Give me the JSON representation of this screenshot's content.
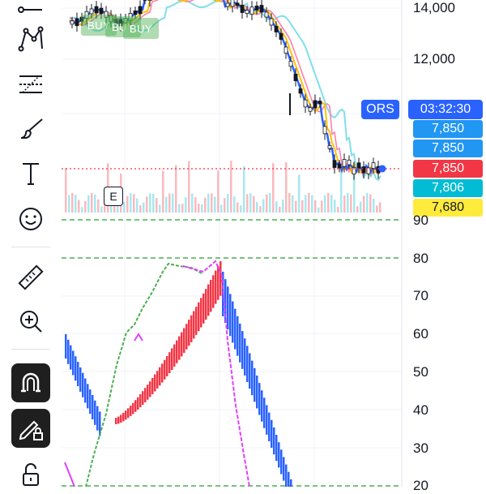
{
  "toolbar": {
    "tools": [
      {
        "name": "trend-line-icon"
      },
      {
        "name": "pattern-icon"
      },
      {
        "name": "fib-retracement-icon"
      },
      {
        "name": "brush-icon"
      },
      {
        "name": "text-icon"
      },
      {
        "name": "emoji-icon"
      },
      {
        "name": "ruler-icon"
      },
      {
        "name": "zoom-in-icon"
      },
      {
        "name": "magnet-icon"
      },
      {
        "name": "lock-drawing-icon"
      },
      {
        "name": "unlock-icon"
      }
    ]
  },
  "price_axis": {
    "labels": [
      "14,000",
      "12,000"
    ]
  },
  "indicator_axis": {
    "labels": [
      "90",
      "80",
      "70",
      "60",
      "50",
      "40",
      "30",
      "20"
    ]
  },
  "tags": {
    "symbol": "ORS",
    "countdown": "03:32:30",
    "prices": [
      {
        "value": "7,850",
        "color": "#2196f3"
      },
      {
        "value": "7,850",
        "color": "#2196f3"
      },
      {
        "value": "7,850",
        "color": "#f23645"
      },
      {
        "value": "7,806",
        "color": "#00bcd4"
      },
      {
        "value": "7,680",
        "color": "#ffeb3b"
      }
    ]
  },
  "markers": {
    "buy": [
      "BUY",
      "BUY",
      "BUY"
    ],
    "earnings": "E"
  },
  "colors": {
    "up": "#f23645",
    "down": "#2962ff",
    "ma_fast": "#2962ff",
    "ma_mid": "#ffc107",
    "ma_slow": "#80deea",
    "ma_pink": "#e040fb",
    "level_line": "#4caf50"
  }
}
